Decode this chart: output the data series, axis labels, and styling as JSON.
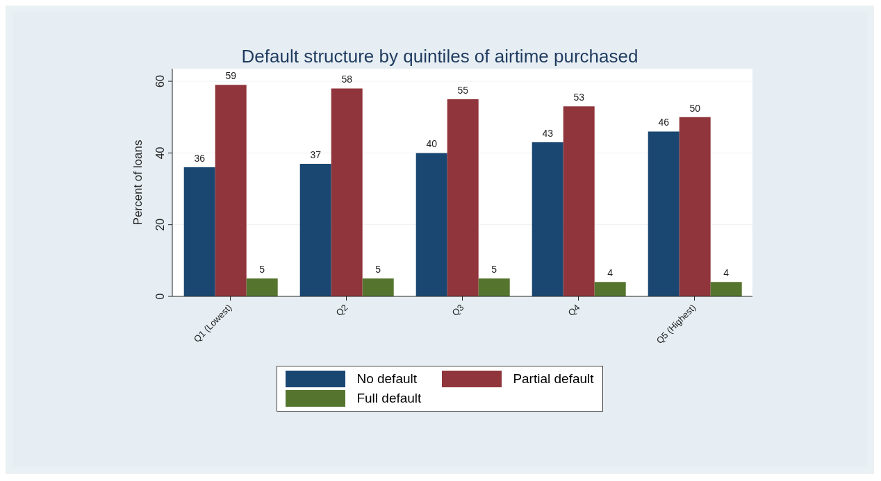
{
  "chart_data": {
    "type": "bar",
    "title": "Default structure by quintiles of airtime purchased",
    "ylabel": "Percent of loans",
    "categories": [
      "Q1 (Lowest)",
      "Q2",
      "Q3",
      "Q4",
      "Q5 (Highest)"
    ],
    "series": [
      {
        "name": "No default",
        "color": "#1a4771",
        "values": [
          36,
          37,
          40,
          43,
          46
        ]
      },
      {
        "name": "Partial default",
        "color": "#90353b",
        "values": [
          59,
          58,
          55,
          53,
          50
        ]
      },
      {
        "name": "Full default",
        "color": "#55752f",
        "values": [
          5,
          5,
          5,
          4,
          4
        ]
      }
    ],
    "ylim": [
      0,
      63.5
    ],
    "yticks": [
      0,
      20,
      40,
      60
    ],
    "grid": "y",
    "data_labels": true,
    "legend": "bottom"
  }
}
